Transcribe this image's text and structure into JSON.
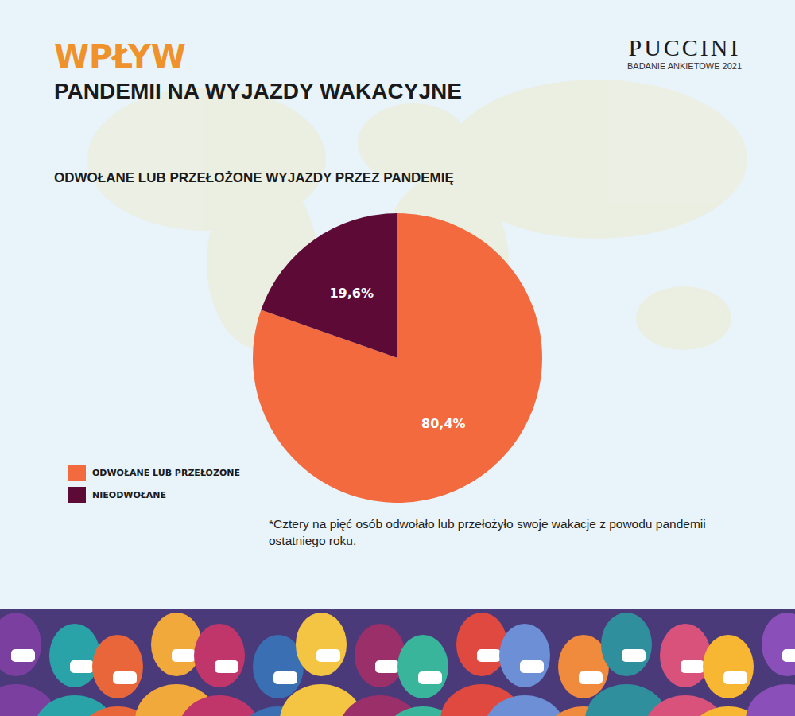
{
  "header": {
    "accent": "WPŁYW",
    "title": "PANDEMII NA WYJAZDY WAKACYJNE",
    "brand": "PUCCINI",
    "brand_sub": "BADANIE ANKIETOWE 2021"
  },
  "chart_data": {
    "type": "pie",
    "title": "ODWOŁANE LUB PRZEŁOŻONE WYJAZDY PRZEZ PANDEMIĘ",
    "categories": [
      "ODWOŁANE LUB PRZEŁOZONE",
      "NIEODWOŁANE"
    ],
    "values": [
      80.4,
      19.6
    ],
    "value_labels": [
      "80,4%",
      "19,6%"
    ],
    "colors": [
      "#f26a3d",
      "#5e0a36"
    ],
    "data_labels": true,
    "legend": "lower left",
    "annotations": [
      "*Cztery na pięć osób odwołało lub przełożyło swoje wakacje z powodu pandemii ostatniego roku."
    ]
  }
}
